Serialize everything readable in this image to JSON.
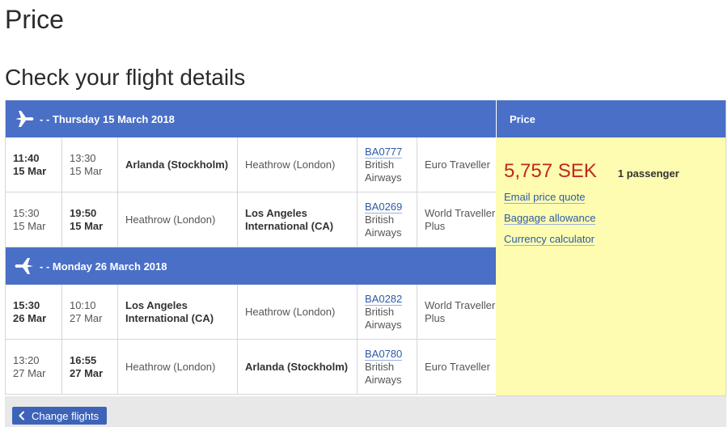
{
  "page_title": "Price",
  "section_title": "Check your flight details",
  "days": [
    {
      "header": "- - Thursday 15 March 2018",
      "flights": [
        {
          "dep_time": "11:40",
          "dep_date": "15 Mar",
          "arr_time": "13:30",
          "arr_date": "15 Mar",
          "from": "Arlanda (Stockholm)",
          "to": "Heathrow (London)",
          "flight_no": "BA0777",
          "airline": "British Airways",
          "cabin": "Euro Traveller"
        },
        {
          "dep_time": "15:30",
          "dep_date": "15 Mar",
          "arr_time": "19:50",
          "arr_date": "15 Mar",
          "from": "Heathrow (London)",
          "to": "Los Angeles International (CA)",
          "flight_no": "BA0269",
          "airline": "British Airways",
          "cabin": "World Traveller Plus"
        }
      ]
    },
    {
      "header": "- - Monday 26 March 2018",
      "flights": [
        {
          "dep_time": "15:30",
          "dep_date": "26 Mar",
          "arr_time": "10:10",
          "arr_date": "27 Mar",
          "from": "Los Angeles International (CA)",
          "to": "Heathrow (London)",
          "flight_no": "BA0282",
          "airline": "British Airways",
          "cabin": "World Traveller Plus"
        },
        {
          "dep_time": "13:20",
          "dep_date": "27 Mar",
          "arr_time": "16:55",
          "arr_date": "27 Mar",
          "from": "Heathrow (London)",
          "to": "Arlanda (Stockholm)",
          "flight_no": "BA0780",
          "airline": "British Airways",
          "cabin": "Euro Traveller"
        }
      ]
    }
  ],
  "price_panel": {
    "header": "Price",
    "amount": "5,757 SEK",
    "passengers": "1 passenger",
    "links": [
      "Email price quote",
      "Baggage allowance",
      "Currency calculator"
    ]
  },
  "footer": {
    "change_flights_label": "Change flights"
  },
  "colors": {
    "header_blue": "#4a6fc7",
    "price_red": "#c0271f",
    "price_panel_yellow": "#fdfcb0",
    "link_blue": "#2c5aa8"
  }
}
